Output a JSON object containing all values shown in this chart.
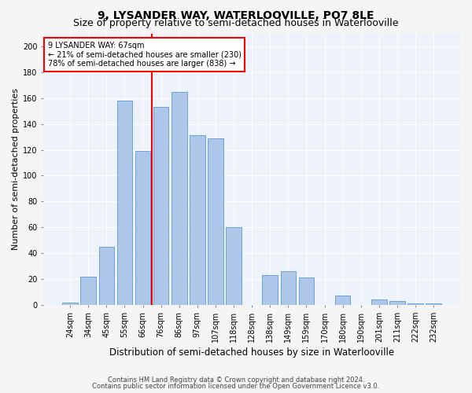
{
  "title": "9, LYSANDER WAY, WATERLOOVILLE, PO7 8LE",
  "subtitle": "Size of property relative to semi-detached houses in Waterlooville",
  "xlabel": "Distribution of semi-detached houses by size in Waterlooville",
  "ylabel": "Number of semi-detached properties",
  "categories": [
    "24sqm",
    "34sqm",
    "45sqm",
    "55sqm",
    "66sqm",
    "76sqm",
    "86sqm",
    "97sqm",
    "107sqm",
    "118sqm",
    "128sqm",
    "138sqm",
    "149sqm",
    "159sqm",
    "170sqm",
    "180sqm",
    "190sqm",
    "201sqm",
    "211sqm",
    "222sqm",
    "232sqm"
  ],
  "values": [
    2,
    22,
    45,
    158,
    119,
    153,
    165,
    131,
    129,
    60,
    0,
    23,
    26,
    21,
    0,
    7,
    0,
    4,
    3,
    1,
    1
  ],
  "bar_color": "#aec6e8",
  "bar_edge_color": "#5b9bd5",
  "red_line_index": 4,
  "annotation_line1": "9 LYSANDER WAY: 67sqm",
  "annotation_line2": "← 21% of semi-detached houses are smaller (230)",
  "annotation_line3": "78% of semi-detached houses are larger (838) →",
  "ylim": [
    0,
    210
  ],
  "yticks": [
    0,
    20,
    40,
    60,
    80,
    100,
    120,
    140,
    160,
    180,
    200
  ],
  "footer1": "Contains HM Land Registry data © Crown copyright and database right 2024.",
  "footer2": "Contains public sector information licensed under the Open Government Licence v3.0.",
  "bg_color": "#eef2fa",
  "grid_color": "#ffffff",
  "fig_bg_color": "#f5f5f5",
  "title_fontsize": 10,
  "subtitle_fontsize": 9,
  "axis_label_fontsize": 8,
  "tick_fontsize": 7,
  "annotation_fontsize": 7,
  "bar_width": 0.85
}
